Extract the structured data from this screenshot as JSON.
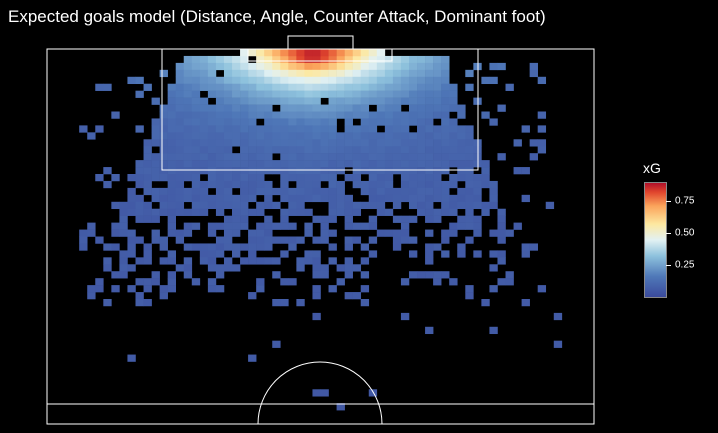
{
  "chart_data": {
    "type": "heatmap",
    "title": "Expected goals model (Distance, Angle, Counter Attack, Dominant foot)",
    "xlabel": "",
    "ylabel": "",
    "grid": false,
    "legend_position": "right",
    "colorbar": {
      "title": "xG",
      "ticks": [
        0.25,
        0.5,
        0.75
      ],
      "tick_labels": [
        "0.25",
        "0.50",
        "0.75"
      ],
      "range": [
        0.0,
        0.95
      ],
      "colors": [
        "#3b4a9c",
        "#4f78b8",
        "#8ec2dd",
        "#e2f1f3",
        "#fde8a0",
        "#fba35b",
        "#e0452d",
        "#b0102a"
      ]
    },
    "bins": {
      "x_count": 68,
      "y_count": 54
    },
    "value_description": "expected goals per shot-location bin; highest (~0.9) directly in front of goal, falling to ~0.05 at long range",
    "regions": [
      {
        "zone": "goal mouth",
        "xg": 0.9
      },
      {
        "zone": "six-yard box",
        "xg": 0.55
      },
      {
        "zone": "penalty box centre",
        "xg": 0.25
      },
      {
        "zone": "edge of box",
        "xg": 0.1
      },
      {
        "zone": "long range",
        "xg": 0.05
      }
    ],
    "isolated_bins": [
      {
        "col": 4,
        "row": 28,
        "xg": 0.05
      },
      {
        "col": 11,
        "row": 33,
        "xg": 0.05
      },
      {
        "col": 10,
        "row": 44,
        "xg": 0.05
      },
      {
        "col": 25,
        "row": 44,
        "xg": 0.05
      },
      {
        "col": 28,
        "row": 42,
        "xg": 0.05
      },
      {
        "col": 33,
        "row": 38,
        "xg": 0.04
      },
      {
        "col": 38,
        "row": 35,
        "xg": 0.05
      },
      {
        "col": 44,
        "row": 38,
        "xg": 0.05
      },
      {
        "col": 47,
        "row": 40,
        "xg": 0.05
      },
      {
        "col": 55,
        "row": 40,
        "xg": 0.05
      },
      {
        "col": 62,
        "row": 22,
        "xg": 0.06
      },
      {
        "col": 63,
        "row": 38,
        "xg": 0.05
      },
      {
        "col": 63,
        "row": 42,
        "xg": 0.05
      },
      {
        "col": 58,
        "row": 25,
        "xg": 0.05
      },
      {
        "col": 33,
        "row": 49,
        "xg": 0.04
      },
      {
        "col": 34,
        "row": 49,
        "xg": 0.04
      },
      {
        "col": 40,
        "row": 49,
        "xg": 0.04
      },
      {
        "col": 36,
        "row": 51,
        "xg": 0.04
      }
    ]
  }
}
